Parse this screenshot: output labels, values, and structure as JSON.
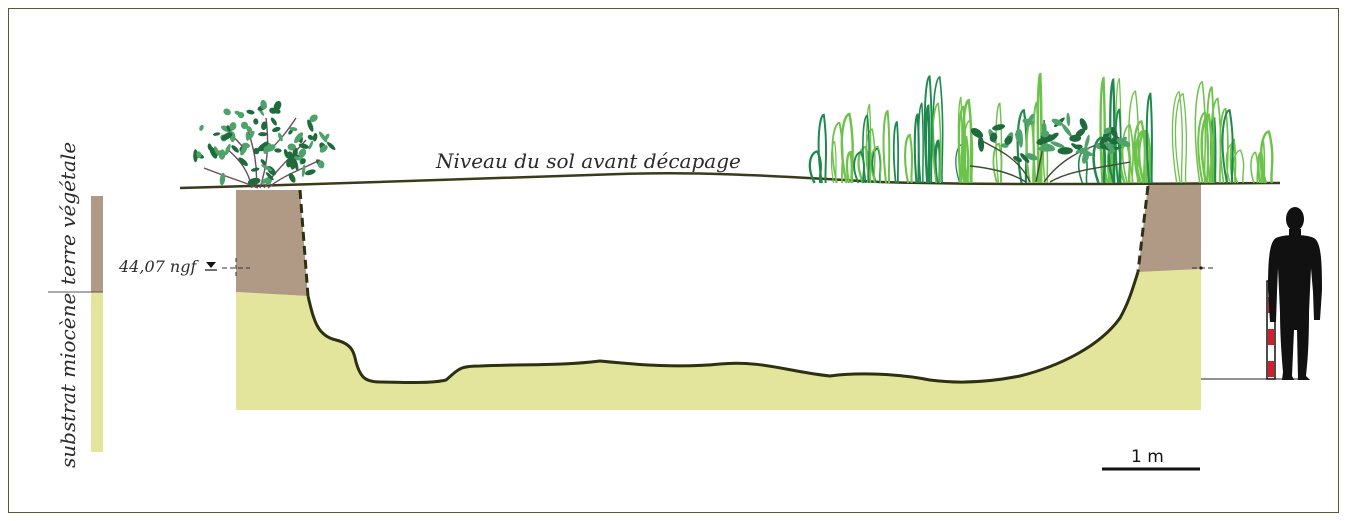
{
  "section": {
    "ground_label": "Niveau du sol avant décapage",
    "elevation_label": "44,07 ngf",
    "scale_label": "1 m"
  },
  "legend": {
    "topsoil_label": "terre végétale",
    "substrate_label": "substrat miocène"
  },
  "colors": {
    "frame": "#5a5a32",
    "topsoil": "#b09a86",
    "substrate": "#e4e59d",
    "ground_line": "#3a3a1c",
    "pit_outline": "#2e3012",
    "shrub_leaf_dark": "#1f6b3c",
    "shrub_leaf_light": "#4fa36a",
    "shrub_branch": "#6b4a5c",
    "grass_light": "#6cc24a",
    "grass_dark": "#1d8a4c",
    "silhouette": "#111111",
    "range_pole_red": "#d01f2a"
  },
  "icons": [
    "shrub-icon",
    "grass-icon",
    "human-silhouette-icon",
    "range-pole-icon",
    "elevation-marker-icon"
  ]
}
